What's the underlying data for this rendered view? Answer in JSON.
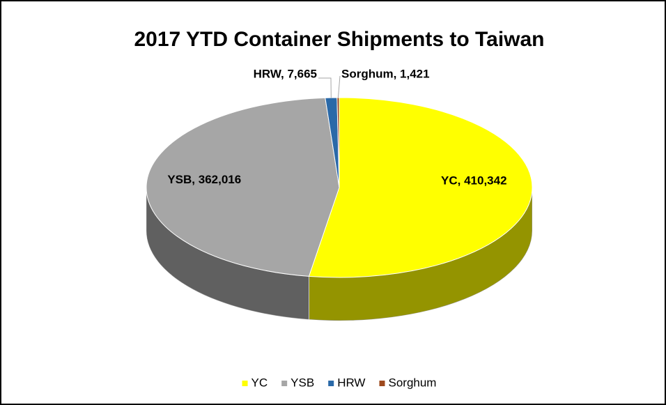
{
  "chart_data": {
    "type": "pie3d",
    "title": "2017 YTD Container Shipments to Taiwan",
    "categories": [
      "YC",
      "YSB",
      "HRW",
      "Sorghum"
    ],
    "values": [
      410342,
      362016,
      7665,
      1421
    ],
    "value_labels": [
      "YC, 410,342",
      "YSB, 362,016",
      "HRW, 7,665",
      "Sorghum, 1,421"
    ],
    "colors": [
      "#ffff00",
      "#a6a6a6",
      "#2a69a8",
      "#9e4a1e"
    ],
    "legend": "bottom"
  }
}
